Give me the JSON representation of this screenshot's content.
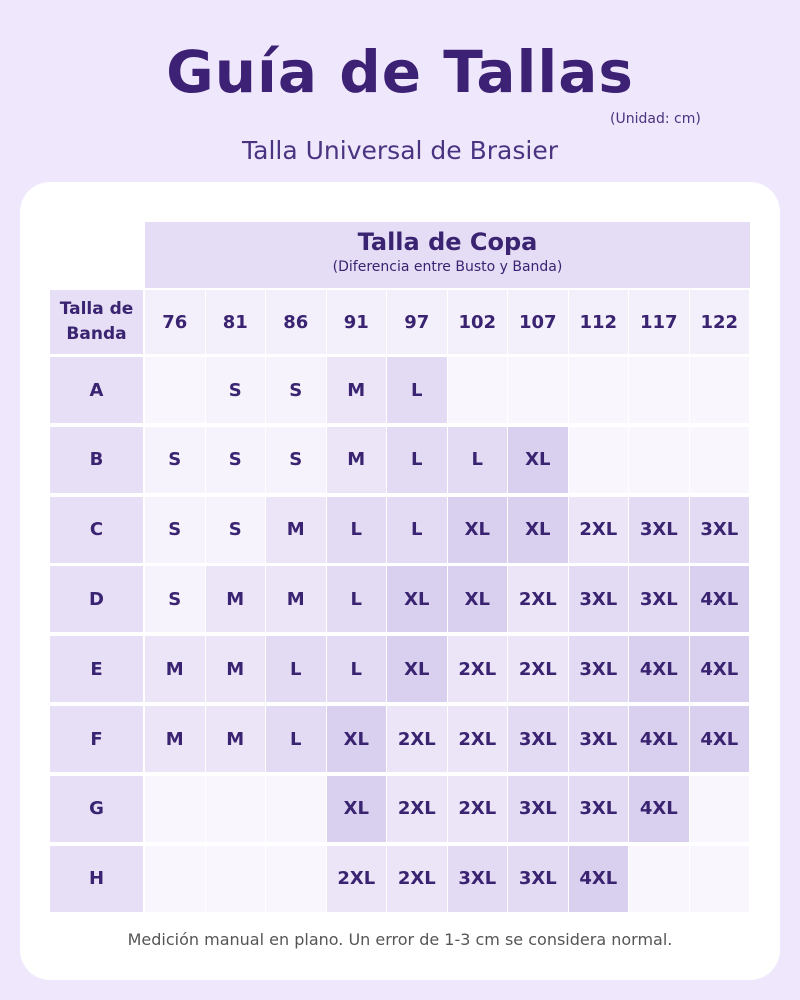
{
  "title": "Guía de Tallas",
  "unit": "(Unidad: cm)",
  "subtitle": "Talla Universal de Brasier",
  "table": {
    "header_title": "Talla de Copa",
    "header_subtitle": "(Diferencia entre Busto y Banda)",
    "band_header": "Talla de Banda",
    "columns": [
      "76",
      "81",
      "86",
      "91",
      "97",
      "102",
      "107",
      "112",
      "117",
      "122"
    ],
    "rows": [
      {
        "band": "A",
        "cells": [
          "",
          "S",
          "S",
          "M",
          "L",
          "",
          "",
          "",
          "",
          ""
        ]
      },
      {
        "band": "B",
        "cells": [
          "S",
          "S",
          "S",
          "M",
          "L",
          "L",
          "XL",
          "",
          "",
          ""
        ]
      },
      {
        "band": "C",
        "cells": [
          "S",
          "S",
          "M",
          "L",
          "L",
          "XL",
          "XL",
          "2XL",
          "3XL",
          "3XL"
        ]
      },
      {
        "band": "D",
        "cells": [
          "S",
          "M",
          "M",
          "L",
          "XL",
          "XL",
          "2XL",
          "3XL",
          "3XL",
          "4XL"
        ]
      },
      {
        "band": "E",
        "cells": [
          "M",
          "M",
          "L",
          "L",
          "XL",
          "2XL",
          "2XL",
          "3XL",
          "4XL",
          "4XL"
        ]
      },
      {
        "band": "F",
        "cells": [
          "M",
          "M",
          "L",
          "XL",
          "2XL",
          "2XL",
          "3XL",
          "3XL",
          "4XL",
          "4XL"
        ]
      },
      {
        "band": "G",
        "cells": [
          "",
          "",
          "",
          "XL",
          "2XL",
          "2XL",
          "3XL",
          "3XL",
          "4XL",
          ""
        ]
      },
      {
        "band": "H",
        "cells": [
          "",
          "",
          "",
          "2XL",
          "2XL",
          "3XL",
          "3XL",
          "4XL",
          "",
          ""
        ]
      }
    ]
  },
  "size_colors": {
    "": "#f9f7fd",
    "S": "#f6f3fc",
    "M": "#ebe5f7",
    "L": "#e3dbf3",
    "XL": "#d9cfee",
    "2XL": "#ebe5f7",
    "3XL": "#e3dbf3",
    "4XL": "#d9cfee"
  },
  "footer": "Medición manual en plano. Un error de 1-3 cm se considera normal."
}
